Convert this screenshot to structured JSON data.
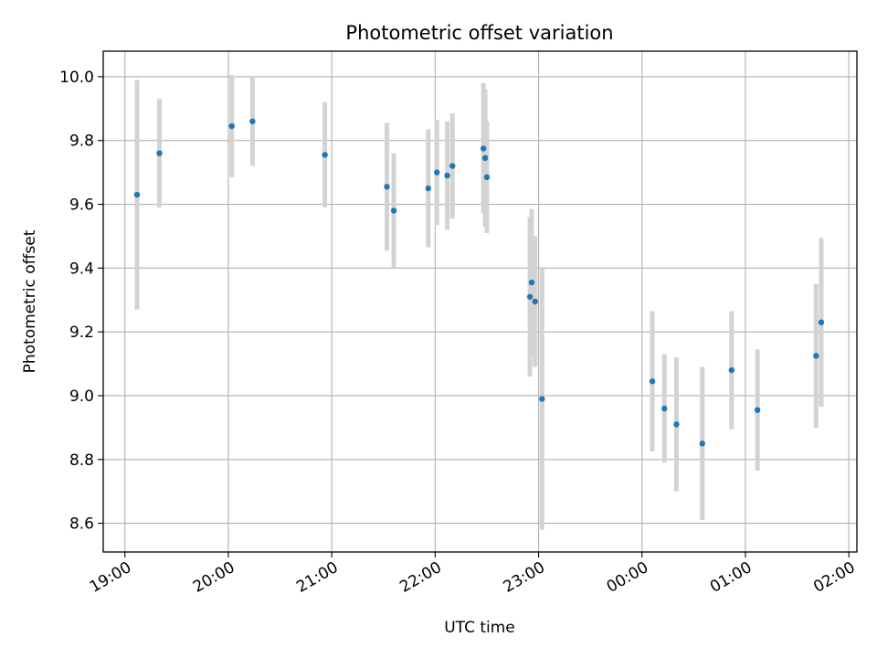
{
  "chart_data": {
    "type": "scatter",
    "title": "Photometric offset variation",
    "xlabel": "UTC time",
    "ylabel": "Photometric offset",
    "x_ticks": [
      "19:00",
      "20:00",
      "21:00",
      "22:00",
      "23:00",
      "00:00",
      "01:00",
      "02:00"
    ],
    "y_ticks": [
      "8.6",
      "8.8",
      "9.0",
      "9.2",
      "9.4",
      "9.6",
      "9.8",
      "10.0"
    ],
    "ylim": [
      8.51,
      10.08
    ],
    "x_range_minutes_from_19": [
      -12.6,
      424.7
    ],
    "grid": true,
    "colors": {
      "point": "#1f77b4",
      "errorbar": "#d3d3d3",
      "grid": "#b0b0b0"
    },
    "points": [
      {
        "t": "19:07",
        "y": 9.63,
        "err": 0.36
      },
      {
        "t": "19:20",
        "y": 9.76,
        "err": 0.17
      },
      {
        "t": "20:02",
        "y": 9.845,
        "err": 0.16
      },
      {
        "t": "20:14",
        "y": 9.86,
        "err": 0.14
      },
      {
        "t": "20:56",
        "y": 9.755,
        "err": 0.165
      },
      {
        "t": "21:32",
        "y": 9.655,
        "err": 0.2
      },
      {
        "t": "21:36",
        "y": 9.58,
        "err": 0.18
      },
      {
        "t": "21:56",
        "y": 9.65,
        "err": 0.185
      },
      {
        "t": "22:01",
        "y": 9.7,
        "err": 0.165
      },
      {
        "t": "22:07",
        "y": 9.69,
        "err": 0.17
      },
      {
        "t": "22:10",
        "y": 9.72,
        "err": 0.165
      },
      {
        "t": "22:28",
        "y": 9.775,
        "err": 0.205
      },
      {
        "t": "22:29",
        "y": 9.745,
        "err": 0.215
      },
      {
        "t": "22:30",
        "y": 9.685,
        "err": 0.175
      },
      {
        "t": "22:55",
        "y": 9.31,
        "err": 0.25
      },
      {
        "t": "22:56",
        "y": 9.355,
        "err": 0.23
      },
      {
        "t": "22:58",
        "y": 9.295,
        "err": 0.205
      },
      {
        "t": "23:02",
        "y": 8.99,
        "err": 0.41
      },
      {
        "t": "00:06",
        "y": 9.045,
        "err": 0.22
      },
      {
        "t": "00:13",
        "y": 8.96,
        "err": 0.17
      },
      {
        "t": "00:20",
        "y": 8.91,
        "err": 0.21
      },
      {
        "t": "00:35",
        "y": 8.85,
        "err": 0.24
      },
      {
        "t": "00:52",
        "y": 9.08,
        "err": 0.185
      },
      {
        "t": "01:07",
        "y": 8.955,
        "err": 0.19
      },
      {
        "t": "01:41",
        "y": 9.125,
        "err": 0.225
      },
      {
        "t": "01:44",
        "y": 9.23,
        "err": 0.265
      }
    ]
  }
}
